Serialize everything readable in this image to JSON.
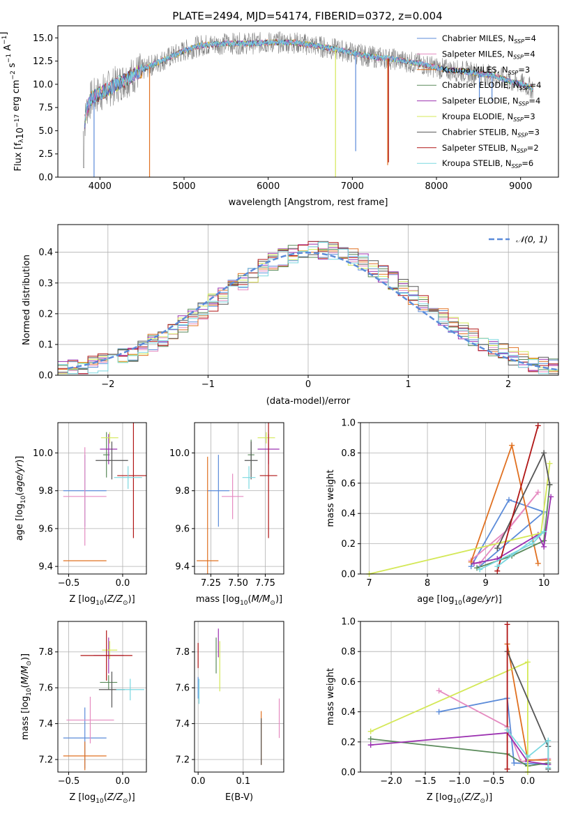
{
  "figure_title": "PLATE=2494, MJD=54174, FIBERID=0372, z=0.004",
  "models": [
    {
      "key": "chab_miles",
      "color": "#5b8bd9",
      "legend": "Chabrier MILES, N",
      "nssp": "4"
    },
    {
      "key": "salp_miles",
      "color": "#e58ac0",
      "legend": "Salpeter MILES, N",
      "nssp": "4"
    },
    {
      "key": "krou_miles",
      "color": "#e07020",
      "legend": "Kroupa MILES, N",
      "nssp": "3"
    },
    {
      "key": "chab_elodie",
      "color": "#5a8a5a",
      "legend": "Chabrier ELODIE, N",
      "nssp": "4"
    },
    {
      "key": "salp_elodie",
      "color": "#9b30b0",
      "legend": "Salpeter ELODIE, N",
      "nssp": "4"
    },
    {
      "key": "krou_elodie",
      "color": "#d4e857",
      "legend": "Kroupa ELODIE, N",
      "nssp": "3"
    },
    {
      "key": "chab_stelib",
      "color": "#555555",
      "legend": "Chabrier STELIB, N",
      "nssp": "3"
    },
    {
      "key": "salp_stelib",
      "color": "#b01515",
      "legend": "Salpeter STELIB, N",
      "nssp": "2"
    },
    {
      "key": "krou_stelib",
      "color": "#7ad8e0",
      "legend": "Kroupa STELIB, N",
      "nssp": "6"
    }
  ],
  "chart_data": [
    {
      "id": "spectrum",
      "type": "line",
      "xlabel": "wavelength [Angstrom, rest frame]",
      "ylabel": "Flux [f_λ10^-17 erg cm^-2 s^-1 A^-1]",
      "xlim": [
        3500,
        9450
      ],
      "ylim": [
        0,
        16.3
      ],
      "xticks": [
        4000,
        5000,
        6000,
        7000,
        8000,
        9000
      ],
      "yticks": [
        0.0,
        2.5,
        5.0,
        7.5,
        10.0,
        12.5,
        15.0
      ],
      "data_color": "#808080",
      "continuum": [
        [
          3800,
          5
        ],
        [
          3850,
          7.5
        ],
        [
          3900,
          8.5
        ],
        [
          4000,
          9
        ],
        [
          4200,
          10
        ],
        [
          4400,
          11
        ],
        [
          4600,
          12
        ],
        [
          5000,
          13.6
        ],
        [
          5200,
          14.2
        ],
        [
          5500,
          14.4
        ],
        [
          5800,
          14.4
        ],
        [
          6000,
          14.5
        ],
        [
          6300,
          14.5
        ],
        [
          6600,
          14.1
        ],
        [
          6900,
          13.6
        ],
        [
          7200,
          13
        ],
        [
          7500,
          12.7
        ],
        [
          7800,
          12.2
        ],
        [
          8100,
          11.6
        ],
        [
          8400,
          11.3
        ],
        [
          8700,
          10.9
        ],
        [
          8900,
          10.2
        ],
        [
          9000,
          10.1
        ],
        [
          9150,
          9.5
        ]
      ],
      "absorption_lines": [
        [
          4590,
          0
        ],
        [
          6800,
          0
        ],
        [
          7040,
          2.8
        ],
        [
          7420,
          1.3
        ],
        [
          7430,
          1.6
        ],
        [
          3930,
          0
        ],
        [
          8510,
          8.3
        ],
        [
          8660,
          8.2
        ]
      ],
      "grid": false,
      "legend": "upper-right"
    },
    {
      "id": "residuals",
      "type": "histogram",
      "xlabel": "(data-model)/error",
      "ylabel": "Normed distribution",
      "xlim": [
        -2.5,
        2.5
      ],
      "ylim": [
        0,
        0.49
      ],
      "xticks": [
        -2,
        -1,
        0,
        1,
        2
      ],
      "yticks": [
        0.0,
        0.1,
        0.2,
        0.3,
        0.4
      ],
      "reference_curve": "𝒩(0, 1)",
      "bin_width": 0.1,
      "grid": true,
      "legend": "upper-right"
    },
    {
      "id": "age_vs_Z",
      "type": "scatter",
      "xlabel": "Z [log10(Z/Z☉)]",
      "ylabel": "age  [log10(age/yr)]",
      "xlim": [
        -0.6,
        0.22
      ],
      "ylim": [
        9.36,
        10.16
      ],
      "xticks": [
        -0.5,
        0.0
      ],
      "yticks": [
        9.4,
        9.6,
        9.8,
        10.0
      ],
      "grid": true,
      "points": [
        {
          "m": "chab_miles",
          "x": -0.35,
          "xe": 0.2,
          "y": 9.8,
          "ye": 0.19
        },
        {
          "m": "salp_miles",
          "x": -0.35,
          "xe": 0.2,
          "y": 9.77,
          "ye": 0.26
        },
        {
          "m": "krou_miles",
          "x": -0.35,
          "xe": 0.2,
          "y": 9.43,
          "ye": 0
        },
        {
          "m": "chab_elodie",
          "x": -0.15,
          "xe": 0.03,
          "y": 9.99,
          "ye": 0.12
        },
        {
          "m": "salp_elodie",
          "x": -0.13,
          "xe": 0.08,
          "y": 10.02,
          "ye": 0.08
        },
        {
          "m": "krou_elodie",
          "x": -0.12,
          "xe": 0.08,
          "y": 10.08,
          "ye": 0.03
        },
        {
          "m": "chab_stelib",
          "x": -0.1,
          "xe": 0.15,
          "y": 9.96,
          "ye": 0.1
        },
        {
          "m": "salp_stelib",
          "x": 0.1,
          "xe": 0.15,
          "y": 9.88,
          "ye": 0.33
        },
        {
          "m": "krou_stelib",
          "x": 0.05,
          "xe": 0.13,
          "y": 9.87,
          "ye": 0.06
        }
      ]
    },
    {
      "id": "age_vs_mass",
      "type": "scatter",
      "xlabel": "mass [log10(M/M☉)]",
      "ylabel": "",
      "xlim": [
        7.1,
        7.92
      ],
      "ylim": [
        9.36,
        10.16
      ],
      "xticks": [
        7.25,
        7.5,
        7.75
      ],
      "yticks": [
        9.4,
        9.6,
        9.8,
        10.0
      ],
      "grid": true,
      "points": [
        {
          "m": "chab_miles",
          "x": 7.32,
          "xe": 0.1,
          "y": 9.8,
          "ye": 0.19
        },
        {
          "m": "salp_miles",
          "x": 7.45,
          "xe": 0.1,
          "y": 9.77,
          "ye": 0.12
        },
        {
          "m": "krou_miles",
          "x": 7.22,
          "xe": 0.1,
          "y": 9.43,
          "ye": 0.55
        },
        {
          "m": "chab_elodie",
          "x": 7.62,
          "xe": 0.03,
          "y": 9.99,
          "ye": 0.08
        },
        {
          "m": "salp_elodie",
          "x": 7.78,
          "xe": 0.1,
          "y": 10.02,
          "ye": 0.08
        },
        {
          "m": "krou_elodie",
          "x": 7.76,
          "xe": 0.08,
          "y": 10.08,
          "ye": 0.03
        },
        {
          "m": "chab_stelib",
          "x": 7.62,
          "xe": 0.06,
          "y": 9.96,
          "ye": 0.1
        },
        {
          "m": "salp_stelib",
          "x": 7.78,
          "xe": 0.08,
          "y": 9.88,
          "ye": 0.33
        },
        {
          "m": "krou_stelib",
          "x": 7.6,
          "xe": 0.06,
          "y": 9.87,
          "ye": 0.06
        }
      ]
    },
    {
      "id": "mw_vs_age",
      "type": "line",
      "xlabel": "age  [log10(age/yr)]",
      "ylabel": "mass weight",
      "xlim": [
        6.85,
        10.25
      ],
      "ylim": [
        0,
        1.0
      ],
      "xticks": [
        7,
        8,
        9,
        10
      ],
      "yticks": [
        0.0,
        0.2,
        0.4,
        0.6,
        0.8,
        1.0
      ],
      "grid": true,
      "series": [
        {
          "m": "chab_miles",
          "pts": [
            [
              8.75,
              0.05
            ],
            [
              9.4,
              0.49
            ],
            [
              10.0,
              0.41
            ],
            [
              8.9,
              0.05
            ]
          ]
        },
        {
          "m": "salp_miles",
          "pts": [
            [
              8.75,
              0.09
            ],
            [
              9.4,
              0.3
            ],
            [
              9.9,
              0.54
            ],
            [
              8.9,
              0.07
            ]
          ]
        },
        {
          "m": "krou_miles",
          "pts": [
            [
              8.75,
              0.08
            ],
            [
              9.45,
              0.85
            ],
            [
              9.9,
              0.07
            ]
          ]
        },
        {
          "m": "chab_elodie",
          "pts": [
            [
              8.85,
              0.04
            ],
            [
              9.45,
              0.12
            ],
            [
              10.0,
              0.22
            ],
            [
              10.1,
              0.59
            ]
          ]
        },
        {
          "m": "salp_elodie",
          "pts": [
            [
              8.8,
              0.07
            ],
            [
              9.2,
              0.1
            ],
            [
              9.9,
              0.26
            ],
            [
              10.0,
              0.18
            ],
            [
              10.12,
              0.51
            ]
          ]
        },
        {
          "m": "krou_elodie",
          "pts": [
            [
              7.0,
              0.0
            ],
            [
              9.95,
              0.27
            ],
            [
              10.1,
              0.73
            ]
          ]
        },
        {
          "m": "chab_stelib",
          "pts": [
            [
              9.2,
              0.17
            ],
            [
              10.0,
              0.8
            ],
            [
              10.1,
              0.59
            ]
          ]
        },
        {
          "m": "salp_stelib",
          "pts": [
            [
              9.2,
              0.02
            ],
            [
              9.9,
              0.98
            ]
          ]
        },
        {
          "m": "krou_stelib",
          "pts": [
            [
              8.9,
              0.03
            ],
            [
              9.8,
              0.2
            ],
            [
              10.0,
              0.28
            ],
            [
              9.2,
              0.05
            ]
          ]
        }
      ]
    },
    {
      "id": "mass_vs_Z",
      "type": "scatter",
      "xlabel": "Z [log10(Z/Z☉)]",
      "ylabel": "mass [log10(M/M☉)]",
      "xlim": [
        -0.6,
        0.22
      ],
      "ylim": [
        7.13,
        7.97
      ],
      "xticks": [
        -0.5,
        0.0
      ],
      "yticks": [
        7.2,
        7.4,
        7.6,
        7.8
      ],
      "grid": true,
      "points": [
        {
          "m": "chab_miles",
          "x": -0.35,
          "xe": 0.2,
          "y": 7.32,
          "ye": 0.17
        },
        {
          "m": "salp_miles",
          "x": -0.3,
          "xe": 0.22,
          "y": 7.42,
          "ye": 0.13
        },
        {
          "m": "krou_miles",
          "x": -0.35,
          "xe": 0.2,
          "y": 7.22,
          "ye": 0.08
        },
        {
          "m": "chab_elodie",
          "x": -0.13,
          "xe": 0.08,
          "y": 7.63,
          "ye": 0.04
        },
        {
          "m": "salp_elodie",
          "x": -0.13,
          "xe": 0.14,
          "y": 7.78,
          "ye": 0.1
        },
        {
          "m": "krou_elodie",
          "x": -0.12,
          "xe": 0.07,
          "y": 7.81,
          "ye": 0.05
        },
        {
          "m": "chab_stelib",
          "x": -0.1,
          "xe": 0.12,
          "y": 7.59,
          "ye": 0.1
        },
        {
          "m": "salp_stelib",
          "x": -0.15,
          "xe": 0.24,
          "y": 7.78,
          "ye": 0.14
        },
        {
          "m": "krou_stelib",
          "x": 0.07,
          "xe": 0.13,
          "y": 7.59,
          "ye": 0.06
        }
      ]
    },
    {
      "id": "mass_vs_EBV",
      "type": "scatter",
      "xlabel": "E(B-V)",
      "ylabel": "",
      "xlim": [
        -0.008,
        0.19
      ],
      "ylim": [
        7.13,
        7.97
      ],
      "xticks": [
        0.0,
        0.1
      ],
      "yticks": [
        7.2,
        7.4,
        7.6,
        7.8
      ],
      "grid": true,
      "points": [
        {
          "m": "chab_miles",
          "x": 0.0,
          "xe": 0,
          "y": 7.6,
          "ye": 0.06
        },
        {
          "m": "salp_miles",
          "x": 0.18,
          "xe": 0,
          "y": 7.43,
          "ye": 0.11
        },
        {
          "m": "krou_miles",
          "x": 0.14,
          "xe": 0,
          "y": 7.32,
          "ye": 0.15
        },
        {
          "m": "chab_elodie",
          "x": 0.04,
          "xe": 0,
          "y": 7.78,
          "ye": 0.1
        },
        {
          "m": "salp_elodie",
          "x": 0.045,
          "xe": 0,
          "y": 7.85,
          "ye": 0.08
        },
        {
          "m": "krou_elodie",
          "x": 0.048,
          "xe": 0,
          "y": 7.72,
          "ye": 0.14
        },
        {
          "m": "chab_stelib",
          "x": 0.14,
          "xe": 0,
          "y": 7.3,
          "ye": 0.13
        },
        {
          "m": "salp_stelib",
          "x": 0.0,
          "xe": 0,
          "y": 7.78,
          "ye": 0.07
        },
        {
          "m": "krou_stelib",
          "x": 0.002,
          "xe": 0,
          "y": 7.58,
          "ye": 0.07
        }
      ]
    },
    {
      "id": "mw_vs_Z",
      "type": "line",
      "xlabel": "Z [log10(Z/Z☉)]",
      "ylabel": "mass weight",
      "xlim": [
        -2.45,
        0.45
      ],
      "ylim": [
        0,
        1.0
      ],
      "xticks": [
        -2.0,
        -1.5,
        -1.0,
        -0.5,
        0.0
      ],
      "yticks": [
        0.0,
        0.2,
        0.4,
        0.6,
        0.8,
        1.0
      ],
      "grid": true,
      "series": [
        {
          "m": "chab_miles",
          "pts": [
            [
              -1.3,
              0.4
            ],
            [
              -0.3,
              0.49
            ],
            [
              -0.2,
              0.06
            ],
            [
              0.3,
              0.05
            ]
          ]
        },
        {
          "m": "salp_miles",
          "pts": [
            [
              -1.3,
              0.54
            ],
            [
              -0.3,
              0.3
            ],
            [
              -0.1,
              0.07
            ],
            [
              0.3,
              0.09
            ]
          ]
        },
        {
          "m": "krou_miles",
          "pts": [
            [
              -0.3,
              0.85
            ],
            [
              0.0,
              0.08
            ],
            [
              0.3,
              0.08
            ]
          ]
        },
        {
          "m": "chab_elodie",
          "pts": [
            [
              -2.3,
              0.22
            ],
            [
              -0.3,
              0.12
            ],
            [
              0.0,
              0.04
            ],
            [
              0.3,
              0.06
            ]
          ]
        },
        {
          "m": "salp_elodie",
          "pts": [
            [
              -2.3,
              0.18
            ],
            [
              -0.3,
              0.26
            ],
            [
              0.0,
              0.07
            ],
            [
              0.3,
              0.05
            ]
          ]
        },
        {
          "m": "krou_elodie",
          "pts": [
            [
              -2.3,
              0.27
            ],
            [
              0.0,
              0.73
            ],
            [
              0.0,
              0.0
            ]
          ]
        },
        {
          "m": "chab_stelib",
          "pts": [
            [
              -0.3,
              0.8
            ],
            [
              0.3,
              0.17
            ],
            [
              0.3,
              0.02
            ]
          ]
        },
        {
          "m": "salp_stelib",
          "pts": [
            [
              -0.3,
              0.02
            ],
            [
              -0.3,
              0.98
            ]
          ]
        },
        {
          "m": "krou_stelib",
          "pts": [
            [
              -0.3,
              0.28
            ],
            [
              0.0,
              0.1
            ],
            [
              0.3,
              0.21
            ],
            [
              0.3,
              0.03
            ]
          ]
        }
      ]
    }
  ]
}
